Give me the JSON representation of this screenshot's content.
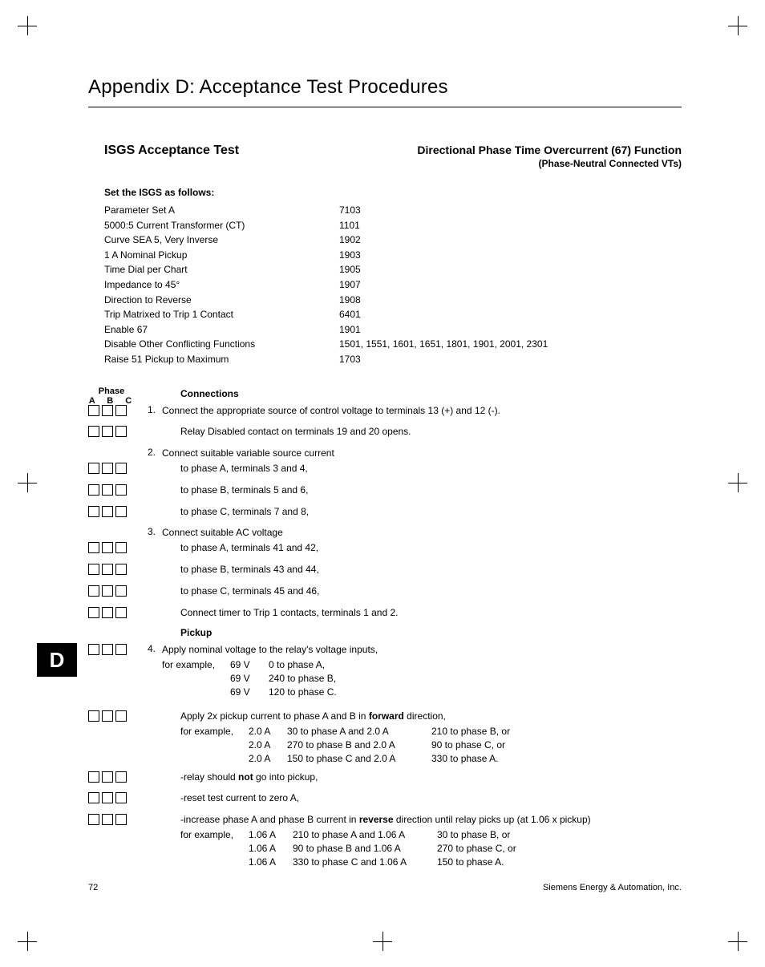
{
  "appendix_title": "Appendix D:  Acceptance Test Procedures",
  "header": {
    "left": "ISGS Acceptance Test",
    "function_title": "Directional Phase Time Overcurrent (67) Function",
    "function_sub": "(Phase-Neutral Connected VTs)"
  },
  "settings": {
    "header": "Set the ISGS as follows:",
    "rows": [
      {
        "label": "Parameter Set A",
        "code": "7103"
      },
      {
        "label": "5000:5 Current Transformer (CT)",
        "code": "1101"
      },
      {
        "label": "Curve SEA 5, Very Inverse",
        "code": "1902"
      },
      {
        "label": "1 A Nominal Pickup",
        "code": "1903"
      },
      {
        "label": "Time Dial per Chart",
        "code": "1905"
      },
      {
        "label": "Impedance to 45°",
        "code": "1907"
      },
      {
        "label": "Direction to Reverse",
        "code": "1908"
      },
      {
        "label": "Trip Matrixed to Trip 1 Contact",
        "code": "6401"
      },
      {
        "label": "Enable 67",
        "code": "1901"
      },
      {
        "label": "Disable Other Conflicting Functions",
        "code": "1501, 1551, 1601, 1651, 1801, 1901, 2001, 2301"
      },
      {
        "label": "Raise 51 Pickup to Maximum",
        "code": "1703"
      }
    ]
  },
  "phase": {
    "label": "Phase",
    "cols": "A  B  C"
  },
  "sections": {
    "connections": "Connections",
    "pickup": "Pickup"
  },
  "steps": {
    "s1": {
      "num": "1.",
      "text": "Connect the appropriate source of control voltage to terminals 13 (+) and 12 (-)."
    },
    "s1a": "Relay Disabled contact on terminals 19 and 20 opens.",
    "s2": {
      "num": "2.",
      "text": "Connect suitable variable source current"
    },
    "s2a": "to phase A, terminals 3 and 4,",
    "s2b": "to phase B, terminals 5 and 6,",
    "s2c": "to phase C, terminals 7 and 8,",
    "s3": {
      "num": "3.",
      "text": "Connect suitable AC voltage"
    },
    "s3a": "to phase A, terminals 41 and 42,",
    "s3b": "to phase B, terminals 43 and 44,",
    "s3c": "to phase C, terminals 45 and 46,",
    "s3d": "Connect timer to Trip 1 contacts, terminals 1 and 2.",
    "s4": {
      "num": "4.",
      "text": "Apply nominal voltage to the relay's voltage inputs,"
    },
    "s4ex": {
      "lead": "for example,",
      "rows": [
        {
          "c1": "69 V",
          "c2": "0 to phase A,"
        },
        {
          "c1": "69 V",
          "c2": "240 to phase B,"
        },
        {
          "c1": "69 V",
          "c2": "120 to phase C."
        }
      ]
    },
    "s5a_pre": "Apply 2x pickup current to phase A and B in ",
    "s5a_bold": "forward",
    "s5a_post": " direction,",
    "s5ex": {
      "lead": "for example,",
      "rows": [
        {
          "c1": "2.0 A",
          "c2": "30 to phase A and 2.0 A",
          "c3": "210 to phase B, or"
        },
        {
          "c1": "2.0 A",
          "c2": "270 to phase B and 2.0 A",
          "c3": "90 to phase C, or"
        },
        {
          "c1": "2.0 A",
          "c2": "150 to phase C and 2.0 A",
          "c3": "330 to phase A."
        }
      ]
    },
    "s6_pre": "-relay should ",
    "s6_bold": "not",
    "s6_post": " go into pickup,",
    "s7": "-reset test current to zero A,",
    "s8_pre": "-increase phase A and phase B current in ",
    "s8_bold": "reverse",
    "s8_post": " direction until relay picks up (at 1.06 x pickup)",
    "s8ex": {
      "lead": "for example,",
      "rows": [
        {
          "c1": "1.06 A",
          "c2": "210 to phase A and 1.06 A",
          "c3": "30 to phase B, or"
        },
        {
          "c1": "1.06 A",
          "c2": "90 to phase B and 1.06 A",
          "c3": "270 to phase C, or"
        },
        {
          "c1": "1.06 A",
          "c2": "330 to phase C and 1.06 A",
          "c3": "150 to phase A."
        }
      ]
    }
  },
  "tab": "D",
  "footer": {
    "page": "72",
    "company": "Siemens Energy & Automation, Inc."
  }
}
